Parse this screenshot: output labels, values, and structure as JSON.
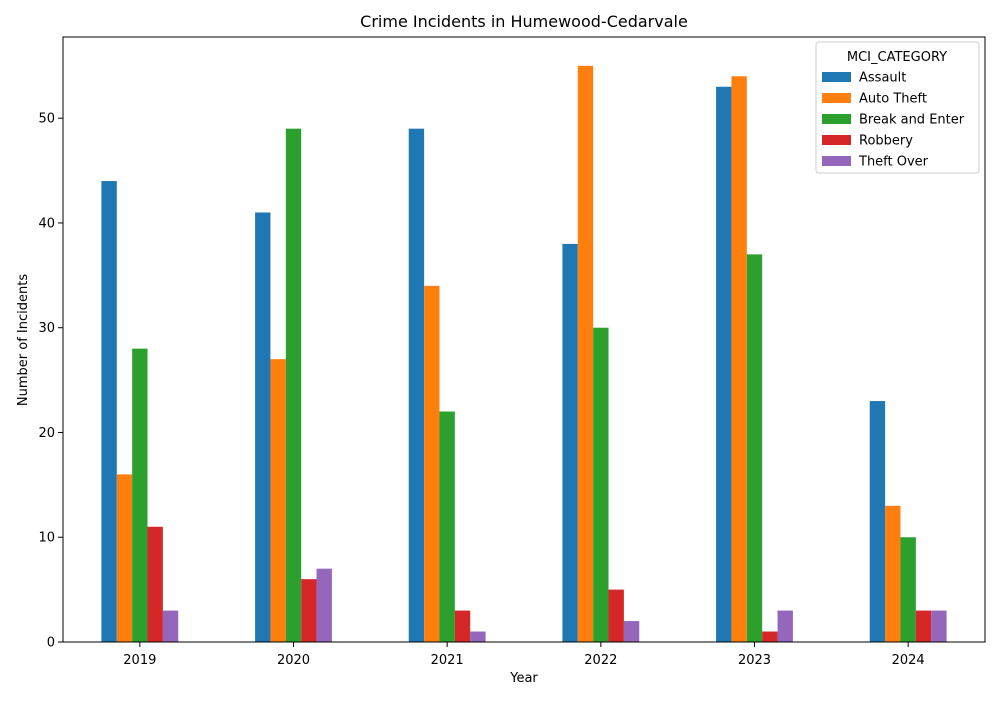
{
  "chart_data": {
    "type": "bar",
    "title": "Crime Incidents in Humewood-Cedarvale",
    "xlabel": "Year",
    "ylabel": "Number of Incidents",
    "categories": [
      "2019",
      "2020",
      "2021",
      "2022",
      "2023",
      "2024"
    ],
    "ylim": [
      0,
      57.75
    ],
    "yticks": [
      0,
      10,
      20,
      30,
      40,
      50
    ],
    "grid": false,
    "legend": {
      "title": "MCI_CATEGORY",
      "position": "top-right"
    },
    "series": [
      {
        "name": "Assault",
        "color": "#1f77b4",
        "values": [
          44,
          41,
          49,
          38,
          53,
          23
        ]
      },
      {
        "name": "Auto Theft",
        "color": "#ff7f0e",
        "values": [
          16,
          27,
          34,
          55,
          54,
          13
        ]
      },
      {
        "name": "Break and Enter",
        "color": "#2ca02c",
        "values": [
          28,
          49,
          22,
          30,
          37,
          10
        ]
      },
      {
        "name": "Robbery",
        "color": "#d62728",
        "values": [
          11,
          6,
          3,
          5,
          1,
          3
        ]
      },
      {
        "name": "Theft Over",
        "color": "#9467bd",
        "values": [
          3,
          7,
          1,
          2,
          3,
          3
        ]
      }
    ]
  }
}
